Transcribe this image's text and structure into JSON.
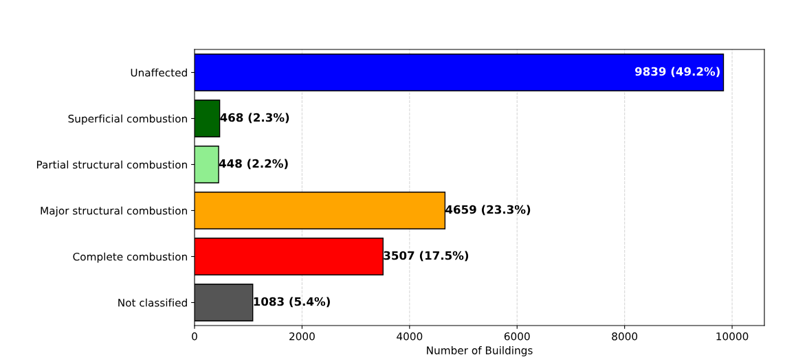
{
  "chart_data": {
    "type": "bar",
    "orientation": "horizontal",
    "categories": [
      "Unaffected",
      "Superficial combustion",
      "Partial structural combustion",
      "Major structural combustion",
      "Complete combustion",
      "Not classified"
    ],
    "values": [
      9839,
      468,
      448,
      4659,
      3507,
      1083
    ],
    "colors": [
      "#0000ff",
      "#006400",
      "#90ee90",
      "#ffa500",
      "#ff0000",
      "#555555"
    ],
    "value_labels": [
      "9839 (49.2%)",
      "468 (2.3%)",
      "448 (2.2%)",
      "4659 (23.3%)",
      "3507 (17.5%)",
      "1083 (5.4%)"
    ],
    "xlabel": "Number of Buildings",
    "xlim": [
      0,
      10600
    ],
    "xticks": [
      0,
      2000,
      4000,
      6000,
      8000,
      10000
    ],
    "grid": "x"
  }
}
